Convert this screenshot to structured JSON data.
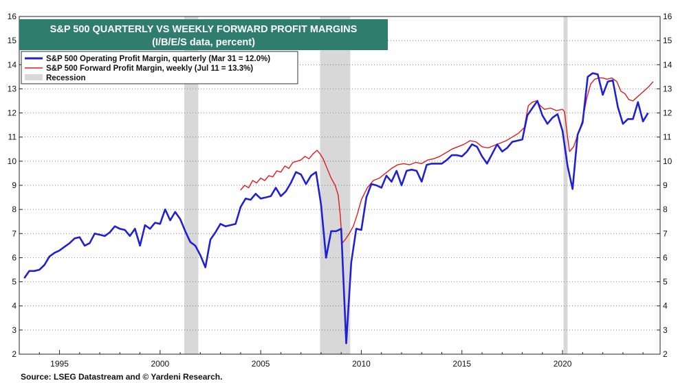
{
  "chart_data": {
    "type": "line",
    "title": "S&P 500 QUARTERLY VS WEEKLY FORWARD PROFIT MARGINS",
    "subtitle": "(I/B/E/S data, percent)",
    "ylim": [
      2,
      16
    ],
    "xlim": [
      1993.0,
      2024.85
    ],
    "y_ticks": [
      2,
      3,
      4,
      5,
      6,
      7,
      8,
      9,
      10,
      11,
      12,
      13,
      14,
      15,
      16
    ],
    "x_ticks": [
      1995,
      2000,
      2005,
      2010,
      2015,
      2020
    ],
    "colors": {
      "title_bg": "#2e7d6e",
      "quarterly": "#1f1fd6",
      "forward": "#e01b1b",
      "recession": "#d8d8d8"
    },
    "legend": [
      {
        "label": "S&P 500 Operating Profit Margin, quarterly (Mar 31 = 12.0%)",
        "color": "#1f1fd6"
      },
      {
        "label": "S&P 500 Forward Profit Margin, weekly (Jul 11 = 13.3%)",
        "color": "#e01b1b"
      },
      {
        "label": "Recession",
        "color": "#d8d8d8"
      }
    ],
    "recessions": [
      [
        2001.2,
        2001.9
      ],
      [
        2007.95,
        2009.45
      ],
      [
        2020.05,
        2020.25
      ]
    ],
    "series": [
      {
        "name": "S&P 500 Operating Profit Margin, quarterly",
        "points": [
          [
            1993.25,
            5.15
          ],
          [
            1993.5,
            5.45
          ],
          [
            1993.75,
            5.45
          ],
          [
            1994.0,
            5.5
          ],
          [
            1994.25,
            5.7
          ],
          [
            1994.5,
            6.05
          ],
          [
            1994.75,
            6.2
          ],
          [
            1995.0,
            6.3
          ],
          [
            1995.25,
            6.45
          ],
          [
            1995.5,
            6.6
          ],
          [
            1995.75,
            6.8
          ],
          [
            1996.0,
            6.85
          ],
          [
            1996.25,
            6.5
          ],
          [
            1996.5,
            6.6
          ],
          [
            1996.75,
            7.0
          ],
          [
            1997.0,
            6.95
          ],
          [
            1997.25,
            6.9
          ],
          [
            1997.5,
            7.05
          ],
          [
            1997.75,
            7.3
          ],
          [
            1998.0,
            7.2
          ],
          [
            1998.25,
            7.15
          ],
          [
            1998.5,
            6.9
          ],
          [
            1998.75,
            7.2
          ],
          [
            1999.0,
            6.5
          ],
          [
            1999.25,
            7.35
          ],
          [
            1999.5,
            7.2
          ],
          [
            1999.75,
            7.45
          ],
          [
            2000.0,
            7.4
          ],
          [
            2000.25,
            8.0
          ],
          [
            2000.5,
            7.55
          ],
          [
            2000.75,
            7.9
          ],
          [
            2001.0,
            7.6
          ],
          [
            2001.25,
            7.1
          ],
          [
            2001.5,
            6.65
          ],
          [
            2001.75,
            6.5
          ],
          [
            2002.0,
            6.1
          ],
          [
            2002.25,
            5.6
          ],
          [
            2002.5,
            6.75
          ],
          [
            2002.75,
            7.05
          ],
          [
            2003.0,
            7.4
          ],
          [
            2003.25,
            7.3
          ],
          [
            2003.5,
            7.35
          ],
          [
            2003.75,
            7.4
          ],
          [
            2004.0,
            8.1
          ],
          [
            2004.25,
            8.45
          ],
          [
            2004.5,
            8.4
          ],
          [
            2004.75,
            8.65
          ],
          [
            2005.0,
            8.45
          ],
          [
            2005.25,
            8.5
          ],
          [
            2005.5,
            8.55
          ],
          [
            2005.75,
            8.9
          ],
          [
            2006.0,
            8.55
          ],
          [
            2006.25,
            8.75
          ],
          [
            2006.5,
            9.1
          ],
          [
            2006.75,
            9.55
          ],
          [
            2007.0,
            9.45
          ],
          [
            2007.25,
            9.05
          ],
          [
            2007.5,
            9.4
          ],
          [
            2007.75,
            9.55
          ],
          [
            2008.0,
            8.2
          ],
          [
            2008.25,
            6.0
          ],
          [
            2008.5,
            7.1
          ],
          [
            2008.75,
            7.1
          ],
          [
            2009.0,
            7.2
          ],
          [
            2009.25,
            2.45
          ],
          [
            2009.5,
            5.8
          ],
          [
            2009.75,
            7.2
          ],
          [
            2010.0,
            7.15
          ],
          [
            2010.25,
            8.5
          ],
          [
            2010.5,
            9.05
          ],
          [
            2010.75,
            9.0
          ],
          [
            2011.0,
            8.9
          ],
          [
            2011.25,
            9.4
          ],
          [
            2011.5,
            9.15
          ],
          [
            2011.75,
            9.6
          ],
          [
            2012.0,
            9.0
          ],
          [
            2012.25,
            9.6
          ],
          [
            2012.5,
            9.65
          ],
          [
            2012.75,
            9.6
          ],
          [
            2013.0,
            9.15
          ],
          [
            2013.25,
            9.85
          ],
          [
            2013.5,
            9.9
          ],
          [
            2013.75,
            9.9
          ],
          [
            2014.0,
            9.9
          ],
          [
            2014.25,
            10.05
          ],
          [
            2014.5,
            10.25
          ],
          [
            2014.75,
            10.25
          ],
          [
            2015.0,
            10.2
          ],
          [
            2015.25,
            10.4
          ],
          [
            2015.5,
            10.7
          ],
          [
            2015.75,
            10.6
          ],
          [
            2016.0,
            10.2
          ],
          [
            2016.25,
            9.9
          ],
          [
            2016.5,
            10.3
          ],
          [
            2016.75,
            10.7
          ],
          [
            2017.0,
            10.4
          ],
          [
            2017.25,
            10.55
          ],
          [
            2017.5,
            10.8
          ],
          [
            2017.75,
            10.85
          ],
          [
            2018.0,
            10.9
          ],
          [
            2018.25,
            11.9
          ],
          [
            2018.5,
            12.2
          ],
          [
            2018.75,
            12.5
          ],
          [
            2019.0,
            11.9
          ],
          [
            2019.25,
            11.55
          ],
          [
            2019.5,
            11.8
          ],
          [
            2019.75,
            11.95
          ],
          [
            2020.0,
            11.25
          ],
          [
            2020.25,
            9.8
          ],
          [
            2020.5,
            8.85
          ],
          [
            2020.75,
            11.1
          ],
          [
            2021.0,
            11.6
          ],
          [
            2021.25,
            13.5
          ],
          [
            2021.5,
            13.65
          ],
          [
            2021.75,
            13.6
          ],
          [
            2022.0,
            12.75
          ],
          [
            2022.25,
            13.3
          ],
          [
            2022.5,
            13.35
          ],
          [
            2022.75,
            12.25
          ],
          [
            2023.0,
            11.55
          ],
          [
            2023.25,
            11.75
          ],
          [
            2023.5,
            11.75
          ],
          [
            2023.75,
            12.45
          ],
          [
            2024.0,
            11.65
          ],
          [
            2024.25,
            12.0
          ]
        ]
      },
      {
        "name": "S&P 500 Forward Profit Margin, weekly",
        "points": [
          [
            2004.0,
            8.8
          ],
          [
            2004.2,
            9.0
          ],
          [
            2004.4,
            8.9
          ],
          [
            2004.6,
            9.2
          ],
          [
            2004.8,
            9.1
          ],
          [
            2005.0,
            9.3
          ],
          [
            2005.2,
            9.2
          ],
          [
            2005.4,
            9.4
          ],
          [
            2005.6,
            9.35
          ],
          [
            2005.8,
            9.6
          ],
          [
            2006.0,
            9.55
          ],
          [
            2006.2,
            9.8
          ],
          [
            2006.4,
            9.7
          ],
          [
            2006.6,
            9.95
          ],
          [
            2006.8,
            10.0
          ],
          [
            2007.0,
            10.05
          ],
          [
            2007.2,
            10.2
          ],
          [
            2007.4,
            10.1
          ],
          [
            2007.6,
            10.3
          ],
          [
            2007.8,
            10.45
          ],
          [
            2007.95,
            10.3
          ],
          [
            2008.1,
            10.1
          ],
          [
            2008.3,
            9.7
          ],
          [
            2008.5,
            9.3
          ],
          [
            2008.7,
            9.0
          ],
          [
            2008.85,
            8.6
          ],
          [
            2008.95,
            7.8
          ],
          [
            2009.05,
            6.6
          ],
          [
            2009.2,
            6.75
          ],
          [
            2009.4,
            7.0
          ],
          [
            2009.6,
            7.3
          ],
          [
            2009.8,
            7.8
          ],
          [
            2010.0,
            8.4
          ],
          [
            2010.3,
            8.9
          ],
          [
            2010.6,
            9.2
          ],
          [
            2010.9,
            9.3
          ],
          [
            2011.2,
            9.5
          ],
          [
            2011.5,
            9.7
          ],
          [
            2011.8,
            9.85
          ],
          [
            2012.1,
            9.9
          ],
          [
            2012.4,
            9.85
          ],
          [
            2012.7,
            9.95
          ],
          [
            2013.0,
            9.9
          ],
          [
            2013.3,
            10.05
          ],
          [
            2013.6,
            10.1
          ],
          [
            2013.9,
            10.2
          ],
          [
            2014.2,
            10.35
          ],
          [
            2014.5,
            10.5
          ],
          [
            2014.8,
            10.6
          ],
          [
            2015.1,
            10.7
          ],
          [
            2015.4,
            10.85
          ],
          [
            2015.7,
            10.8
          ],
          [
            2016.0,
            10.6
          ],
          [
            2016.3,
            10.55
          ],
          [
            2016.6,
            10.65
          ],
          [
            2016.9,
            10.75
          ],
          [
            2017.2,
            10.85
          ],
          [
            2017.5,
            11.0
          ],
          [
            2017.8,
            11.15
          ],
          [
            2018.1,
            11.4
          ],
          [
            2018.3,
            12.3
          ],
          [
            2018.5,
            12.45
          ],
          [
            2018.7,
            12.5
          ],
          [
            2018.9,
            12.3
          ],
          [
            2019.1,
            12.15
          ],
          [
            2019.4,
            12.2
          ],
          [
            2019.7,
            12.1
          ],
          [
            2020.0,
            12.15
          ],
          [
            2020.1,
            12.05
          ],
          [
            2020.25,
            11.0
          ],
          [
            2020.35,
            10.4
          ],
          [
            2020.55,
            10.6
          ],
          [
            2020.8,
            11.2
          ],
          [
            2021.0,
            11.7
          ],
          [
            2021.2,
            12.6
          ],
          [
            2021.4,
            13.2
          ],
          [
            2021.6,
            13.4
          ],
          [
            2021.8,
            13.45
          ],
          [
            2022.0,
            13.45
          ],
          [
            2022.2,
            13.4
          ],
          [
            2022.45,
            13.45
          ],
          [
            2022.7,
            13.3
          ],
          [
            2022.9,
            12.9
          ],
          [
            2023.1,
            12.8
          ],
          [
            2023.3,
            12.55
          ],
          [
            2023.5,
            12.5
          ],
          [
            2023.7,
            12.65
          ],
          [
            2023.9,
            12.8
          ],
          [
            2024.1,
            12.95
          ],
          [
            2024.3,
            13.1
          ],
          [
            2024.5,
            13.3
          ]
        ]
      }
    ],
    "source": "Source: LSEG Datastream and © Yardeni Research."
  }
}
